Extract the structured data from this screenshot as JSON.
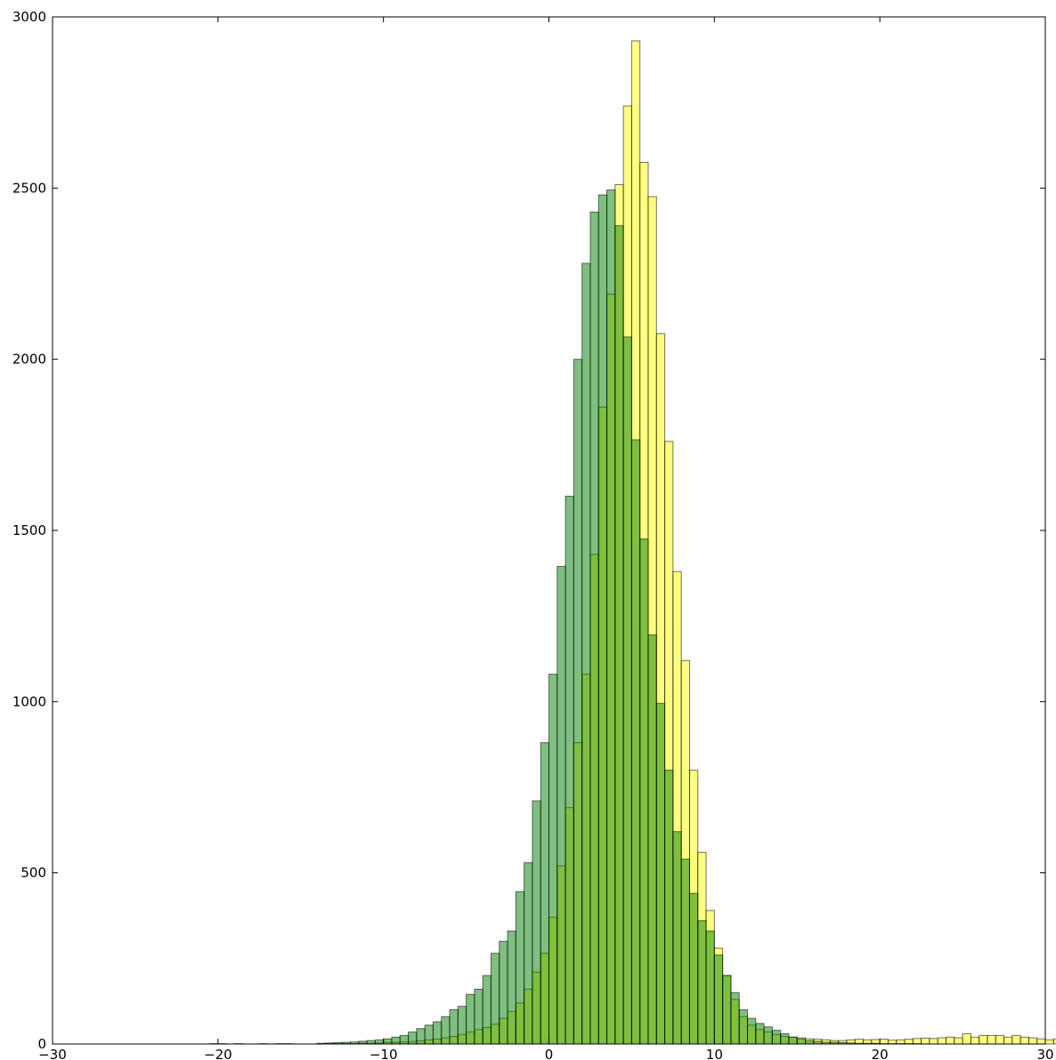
{
  "chart_data": {
    "type": "bar",
    "title": "",
    "xlabel": "",
    "ylabel": "",
    "xlim": [
      -30,
      30
    ],
    "ylim": [
      0,
      3000
    ],
    "grid": false,
    "x_ticks": [
      -30,
      -20,
      -10,
      0,
      10,
      20,
      30
    ],
    "y_ticks": [
      0,
      500,
      1000,
      1500,
      2000,
      2500,
      3000
    ],
    "x_tick_labels": [
      "−30",
      "−20",
      "−10",
      "0",
      "10",
      "20",
      "30"
    ],
    "y_tick_labels": [
      "0",
      "500",
      "1000",
      "1500",
      "2000",
      "2500",
      "3000"
    ],
    "series": [
      {
        "color": "#ffff00",
        "alpha": 0.5,
        "bin_start": -20.5,
        "bin_width": 0.5,
        "values": [
          1,
          1,
          0,
          1,
          0,
          0,
          1,
          0,
          1,
          1,
          0,
          0,
          0,
          1,
          1,
          1,
          1,
          1,
          2,
          2,
          3,
          5,
          5,
          6,
          7,
          9,
          12,
          14,
          18,
          22,
          28,
          35,
          42,
          48,
          58,
          75,
          95,
          120,
          160,
          210,
          265,
          370,
          520,
          690,
          880,
          1080,
          1430,
          1860,
          2190,
          2510,
          2740,
          2930,
          2575,
          2475,
          2075,
          1760,
          1380,
          1120,
          800,
          560,
          390,
          280,
          200,
          130,
          80,
          55,
          42,
          35,
          28,
          22,
          20,
          18,
          15,
          14,
          12,
          10,
          10,
          12,
          14,
          12,
          13,
          14,
          11,
          12,
          14,
          16,
          17,
          16,
          18,
          20,
          18,
          30,
          20,
          25,
          25,
          25,
          20,
          25,
          20,
          18,
          15,
          12,
          15,
          12,
          10,
          12,
          8,
          5,
          3
        ]
      },
      {
        "color": "#008000",
        "alpha": 0.5,
        "bin_start": -20.5,
        "bin_width": 0.5,
        "values": [
          0,
          0,
          0,
          0,
          0,
          0,
          0,
          0,
          0,
          0,
          0,
          0,
          0,
          2,
          3,
          4,
          5,
          6,
          8,
          10,
          12,
          15,
          20,
          25,
          35,
          45,
          55,
          65,
          80,
          100,
          110,
          145,
          160,
          200,
          265,
          300,
          330,
          445,
          530,
          710,
          880,
          1080,
          1395,
          1600,
          2000,
          2280,
          2430,
          2480,
          2495,
          2390,
          2065,
          1765,
          1475,
          1195,
          995,
          800,
          620,
          540,
          440,
          360,
          330,
          260,
          200,
          150,
          100,
          75,
          60,
          50,
          40,
          30,
          20,
          15,
          10,
          8,
          5,
          5,
          4,
          3,
          2,
          2,
          2,
          1,
          1,
          1,
          1,
          1,
          0,
          0,
          0,
          0,
          0,
          0,
          0,
          0,
          0,
          0,
          0,
          0,
          0,
          0,
          0,
          0,
          0,
          0,
          0,
          0
        ]
      }
    ]
  }
}
